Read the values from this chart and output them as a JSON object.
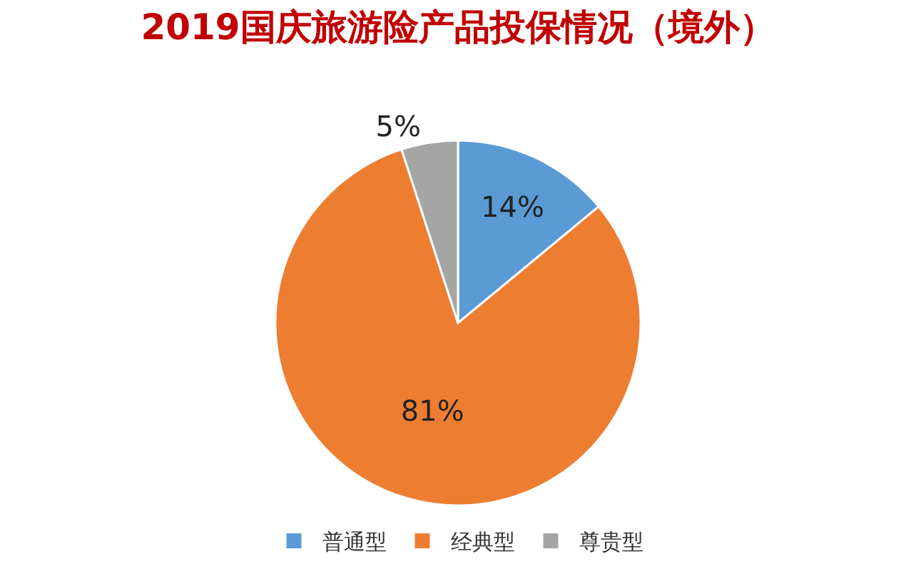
{
  "chart_data": {
    "type": "pie",
    "title": "2019国庆旅游险产品投保情况（境外）",
    "categories": [
      "普通型",
      "经典型",
      "尊贵型"
    ],
    "values": [
      14,
      81,
      5
    ],
    "value_labels": [
      "14%",
      "81%",
      "5%"
    ],
    "colors": [
      "#5b9bd5",
      "#ed7d31",
      "#a5a5a5"
    ],
    "legend": "bottom"
  }
}
